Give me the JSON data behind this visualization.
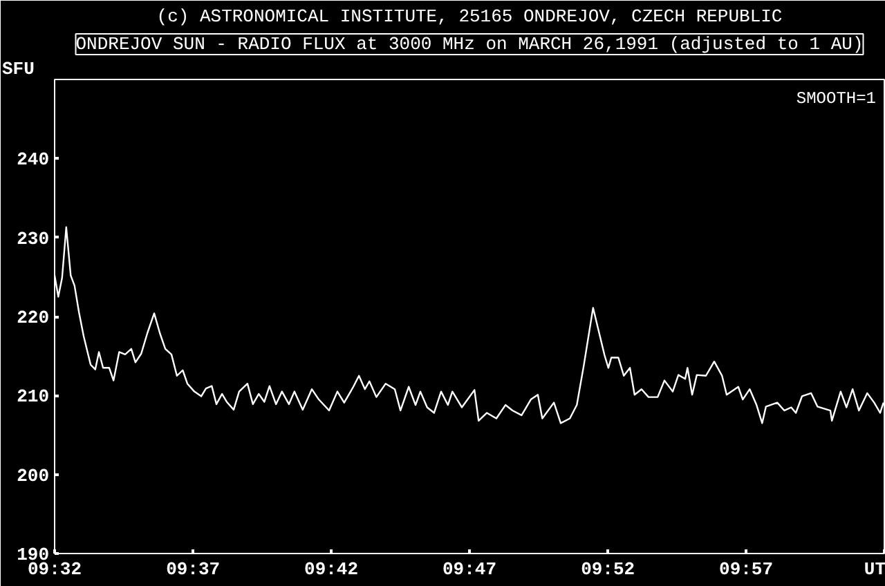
{
  "chart_data": {
    "type": "line",
    "title": "(c) ASTRONOMICAL INSTITUTE, 25165 ONDREJOV, CZECH REPUBLIC",
    "subtitle": "ONDREJOV SUN - RADIO FLUX at 3000 MHz on MARCH 26,1991 (adjusted to 1 AU)",
    "ylabel": "SFU",
    "annotations": [
      "SMOOTH=1"
    ],
    "xlim": [
      9.5333,
      10.0333
    ],
    "xticks": [
      {
        "value": 9.5333,
        "label": "09:32"
      },
      {
        "value": 9.6167,
        "label": "09:37"
      },
      {
        "value": 9.7,
        "label": "09:42"
      },
      {
        "value": 9.7833,
        "label": "09:47"
      },
      {
        "value": 9.8667,
        "label": "09:52"
      },
      {
        "value": 9.95,
        "label": "09:57"
      },
      {
        "value": 10.0333,
        "label": "UT"
      }
    ],
    "ylim": [
      190,
      250
    ],
    "yticks": [
      190,
      200,
      210,
      220,
      230,
      240
    ],
    "grid": false,
    "marker": "none",
    "line_style": "solid",
    "series": [
      {
        "color": "#ffffff",
        "x": [
          9.5333,
          9.5355,
          9.5378,
          9.5403,
          9.543,
          9.5453,
          9.548,
          9.5508,
          9.555,
          9.5578,
          9.56,
          9.5625,
          9.5662,
          9.5688,
          9.5722,
          9.5758,
          9.5795,
          9.582,
          9.5855,
          9.5892,
          9.5933,
          9.5967,
          9.6,
          9.6037,
          9.607,
          9.6105,
          9.6133,
          9.6175,
          9.6217,
          9.6245,
          9.628,
          9.6308,
          9.6342,
          9.637,
          9.6412,
          9.6445,
          9.6495,
          9.6528,
          9.6563,
          9.6597,
          9.6628,
          9.6667,
          9.6703,
          9.6745,
          9.6778,
          9.6828,
          9.6883,
          9.6925,
          9.6987,
          9.7037,
          9.7078,
          9.7133,
          9.7167,
          9.7203,
          9.723,
          9.7272,
          9.7328,
          9.7383,
          9.7417,
          9.7467,
          9.7508,
          9.7537,
          9.7578,
          9.762,
          9.7662,
          9.7703,
          9.773,
          9.7787,
          9.7863,
          9.7888,
          9.7938,
          9.7995,
          9.805,
          9.8092,
          9.8147,
          9.8203,
          9.8245,
          9.8272,
          9.8342,
          9.8383,
          9.8438,
          9.848,
          9.8522,
          9.8578,
          9.8647,
          9.867,
          9.8688,
          9.873,
          9.8763,
          9.88,
          9.8828,
          9.887,
          9.8912,
          9.8967,
          9.9008,
          9.9058,
          9.9092,
          9.9133,
          9.9147,
          9.9175,
          9.9203,
          9.9258,
          9.9308,
          9.9355,
          9.9383,
          9.9453,
          9.948,
          9.9522,
          9.9563,
          9.9597,
          9.962,
          9.9688,
          9.973,
          9.9772,
          9.98,
          9.9837,
          9.9892,
          9.993,
          10.0008,
          10.0017,
          10.007,
          10.0105,
          10.0142,
          10.018,
          10.023,
          10.0272,
          10.0308,
          10.0328
        ],
        "values": [
          225.2,
          222.5,
          224.9,
          231.3,
          225.2,
          223.9,
          220.5,
          217.5,
          213.9,
          213.3,
          215.5,
          213.5,
          213.5,
          211.9,
          215.5,
          215.2,
          215.9,
          214.2,
          215.3,
          217.9,
          220.4,
          217.9,
          215.9,
          215.2,
          212.5,
          213.2,
          211.5,
          210.5,
          209.9,
          210.9,
          211.2,
          208.9,
          210.2,
          209.2,
          208.2,
          210.5,
          211.5,
          208.9,
          210.2,
          209.2,
          211.2,
          208.9,
          210.5,
          208.9,
          210.5,
          208.2,
          210.8,
          209.5,
          208.1,
          210.5,
          209.1,
          211.1,
          212.5,
          210.8,
          211.8,
          209.8,
          211.5,
          210.8,
          208.1,
          211.1,
          208.8,
          210.5,
          208.5,
          207.8,
          210.5,
          208.8,
          210.5,
          208.5,
          210.7,
          206.8,
          207.8,
          207.1,
          208.8,
          208.1,
          207.5,
          209.5,
          210.1,
          207.1,
          209.1,
          206.5,
          207.1,
          208.8,
          213.8,
          221.1,
          215.1,
          213.5,
          214.8,
          214.8,
          212.5,
          213.5,
          210.1,
          210.8,
          209.8,
          209.8,
          211.9,
          210.5,
          212.6,
          212.1,
          213.5,
          210.1,
          212.6,
          212.5,
          214.3,
          212.5,
          210.1,
          211.1,
          209.5,
          210.8,
          208.8,
          206.5,
          208.6,
          209.1,
          208.1,
          208.5,
          207.8,
          209.9,
          210.3,
          208.6,
          208.1,
          206.8,
          210.5,
          208.5,
          210.8,
          208.1,
          210.3,
          209.1,
          207.8,
          209.1
        ]
      }
    ]
  }
}
